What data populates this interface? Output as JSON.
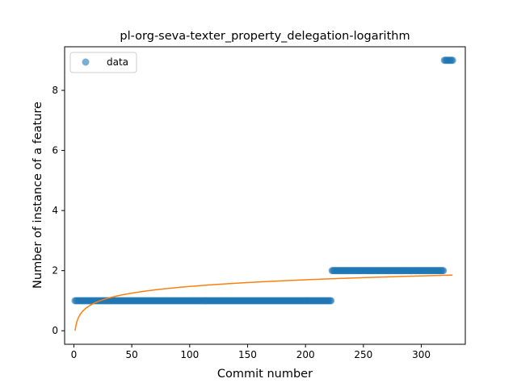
{
  "chart_data": {
    "type": "scatter",
    "title": "pl-org-seva-texter_property_delegation-logarithm",
    "xlabel": "Commit number",
    "ylabel": "Number of instance of a feature",
    "xlim": [
      -8,
      338
    ],
    "ylim": [
      -0.45,
      9.45
    ],
    "xticks": [
      0,
      50,
      100,
      150,
      200,
      250,
      300
    ],
    "yticks": [
      0,
      2,
      4,
      6,
      8
    ],
    "grid": false,
    "legend": {
      "position": "top-left",
      "entries": [
        "data"
      ]
    },
    "colors": {
      "data": "#1f77b4",
      "fit": "#ff7f0e"
    },
    "series": [
      {
        "name": "data",
        "kind": "scatter",
        "segments": [
          {
            "x_start": 1,
            "x_end": 222,
            "y": 1
          },
          {
            "x_start": 223,
            "x_end": 319,
            "y": 2
          },
          {
            "x_start": 320,
            "x_end": 327,
            "y": 9
          }
        ]
      },
      {
        "kind": "line",
        "model": "logarithmic",
        "x_range": [
          1,
          327
        ],
        "a": 0.0,
        "b": 0.32
      }
    ]
  }
}
